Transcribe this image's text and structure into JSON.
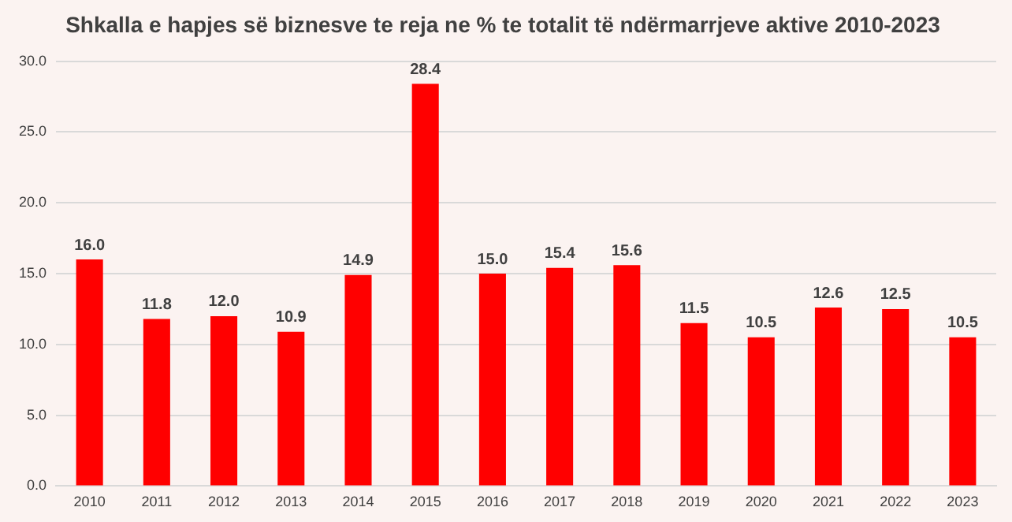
{
  "chart_data": {
    "type": "bar",
    "title": "Shkalla e hapjes së biznesve te reja ne % te totalit të ndërmarrjeve aktive 2010-2023",
    "categories": [
      "2010",
      "2011",
      "2012",
      "2013",
      "2014",
      "2015",
      "2016",
      "2017",
      "2018",
      "2019",
      "2020",
      "2021",
      "2022",
      "2023"
    ],
    "values": [
      16.0,
      11.8,
      12.0,
      10.9,
      14.9,
      28.4,
      15.0,
      15.4,
      15.6,
      11.5,
      10.5,
      12.6,
      12.5,
      10.5
    ],
    "value_labels": [
      "16.0",
      "11.8",
      "12.0",
      "10.9",
      "14.9",
      "28.4",
      "15.0",
      "15.4",
      "15.6",
      "11.5",
      "10.5",
      "12.6",
      "12.5",
      "10.5"
    ],
    "color": "#ff0000",
    "ylim": [
      0,
      30
    ],
    "yticks": [
      {
        "value": 0,
        "label": "0.0"
      },
      {
        "value": 5,
        "label": "5.0"
      },
      {
        "value": 10,
        "label": "10.0"
      },
      {
        "value": 15,
        "label": "15.0"
      },
      {
        "value": 20,
        "label": "20.0"
      },
      {
        "value": 25,
        "label": "25.0"
      },
      {
        "value": 30,
        "label": "30.0"
      }
    ],
    "grid": "y"
  }
}
